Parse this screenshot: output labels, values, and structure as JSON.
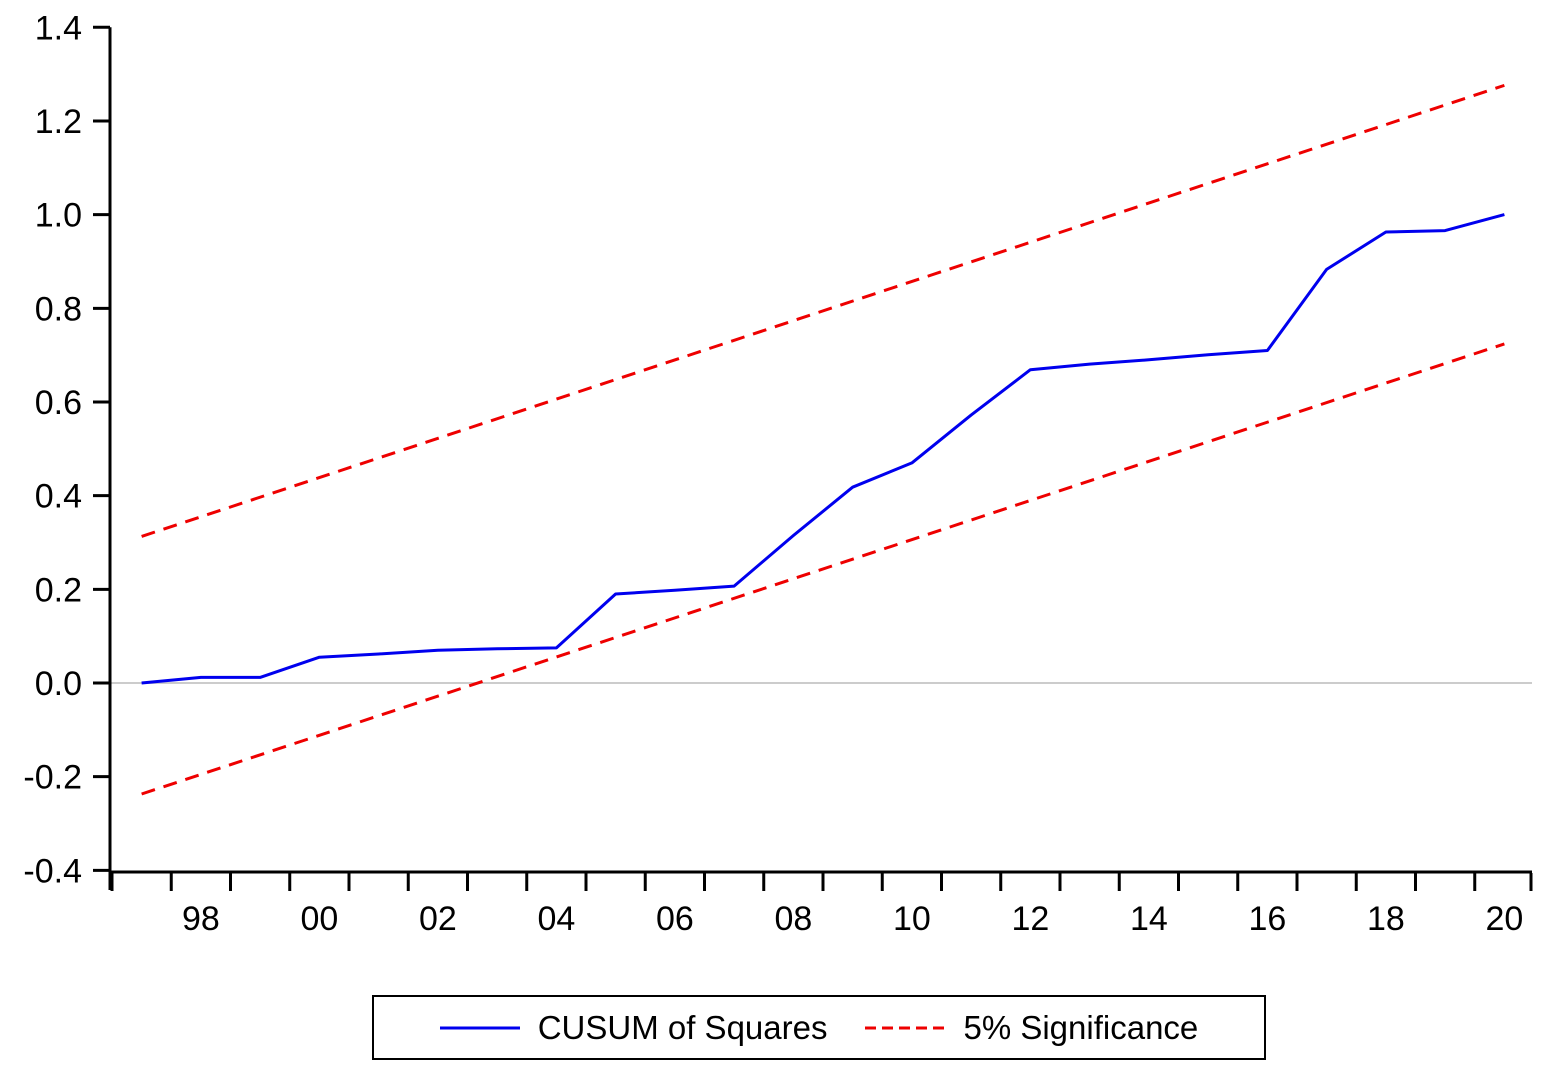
{
  "chart_data": {
    "type": "line",
    "title": "",
    "xlabel": "",
    "ylabel": "",
    "x": [
      1997,
      1998,
      1999,
      2000,
      2001,
      2002,
      2003,
      2004,
      2005,
      2006,
      2007,
      2008,
      2009,
      2010,
      2011,
      2012,
      2013,
      2014,
      2015,
      2016,
      2017,
      2018,
      2019,
      2020
    ],
    "x_tick_labels": [
      "98",
      "00",
      "02",
      "04",
      "06",
      "08",
      "10",
      "12",
      "14",
      "16",
      "18",
      "20"
    ],
    "x_tick_label_years": [
      1998,
      2000,
      2002,
      2004,
      2006,
      2008,
      2010,
      2012,
      2014,
      2016,
      2018,
      2020
    ],
    "xlim_years": [
      1997,
      2021
    ],
    "y_tick_labels": [
      "1.4",
      "1.2",
      "1.0",
      "0.8",
      "0.6",
      "0.4",
      "0.2",
      "0.0",
      "-0.2",
      "-0.4"
    ],
    "y_tick_values": [
      1.4,
      1.2,
      1.0,
      0.8,
      0.6,
      0.4,
      0.2,
      0.0,
      -0.2,
      -0.4
    ],
    "ylim": [
      -0.4,
      1.4
    ],
    "grid": "zero-line-only",
    "zero_line": {
      "value": 0.0,
      "color": "#cccccc"
    },
    "series": [
      {
        "name": "CUSUM of Squares",
        "color": "#0000ee",
        "style": "solid",
        "values": [
          0.0,
          0.012,
          0.012,
          0.055,
          0.062,
          0.07,
          0.073,
          0.075,
          0.19,
          0.198,
          0.207,
          0.315,
          0.418,
          0.47,
          0.572,
          0.669,
          0.681,
          0.69,
          0.701,
          0.71,
          0.883,
          0.963,
          0.966,
          1.0
        ]
      },
      {
        "name": "5% Significance",
        "color": "#ee0000",
        "style": "dashed",
        "upper_bound": {
          "start_year": 1997,
          "start_value": 0.313,
          "end_year": 2020,
          "end_value": 1.276
        },
        "lower_bound": {
          "start_year": 1997,
          "start_value": -0.237,
          "end_year": 2020,
          "end_value": 0.724
        }
      }
    ],
    "legend": {
      "position": "bottom-center",
      "entries": [
        "CUSUM of Squares",
        "5% Significance"
      ]
    },
    "axis_color": "#000000",
    "text_color": "#000000"
  }
}
